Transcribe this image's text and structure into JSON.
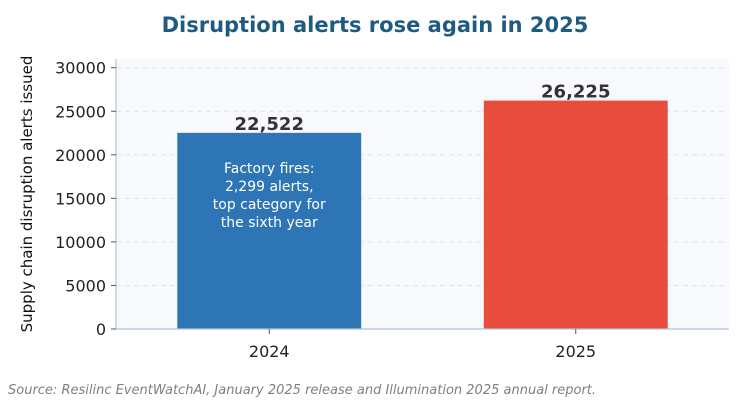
{
  "chart_data": {
    "type": "bar",
    "title": "Disruption alerts rose again in 2025",
    "xlabel": "",
    "ylabel": "Supply chain disruption alerts issued",
    "categories": [
      "2024",
      "2025"
    ],
    "values": [
      22522,
      26225
    ],
    "value_labels": [
      "22,522",
      "26,225"
    ],
    "bar_colors": [
      "#2e75b6",
      "#e74c3c"
    ],
    "ylim": [
      0,
      31000
    ],
    "yticks": [
      0,
      5000,
      10000,
      15000,
      20000,
      25000,
      30000
    ],
    "grid": true,
    "annotation": {
      "category": "2024",
      "lines": [
        "Factory fires:",
        "2,299 alerts,",
        "top category for",
        "the sixth year"
      ]
    }
  },
  "source": "Source: Resilinc EventWatchAI, January 2025 release and Illumination 2025 annual report."
}
